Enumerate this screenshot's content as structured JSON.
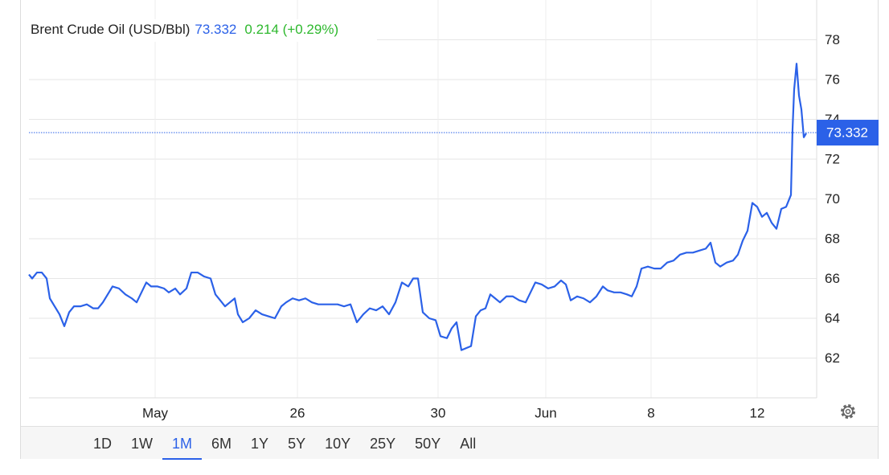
{
  "chart_data": {
    "type": "line",
    "title": "Brent Crude Oil (USD/Bbl)",
    "last_price": 73.332,
    "change": "0.214 (+0.29%)",
    "color": "#2b61e8",
    "price_color": "#2b61e8",
    "change_color": "#2db82d",
    "grid": true,
    "x": [
      0,
      4,
      10,
      16,
      22,
      26,
      32,
      38,
      44,
      50,
      56,
      64,
      72,
      80,
      86,
      92,
      98,
      104,
      112,
      120,
      128,
      134,
      140,
      146,
      152,
      160,
      168,
      174,
      182,
      188,
      196,
      202,
      210,
      218,
      226,
      232,
      238,
      244,
      250,
      256,
      260,
      266,
      274,
      282,
      290,
      298,
      306,
      314,
      320,
      328,
      336,
      344,
      352,
      360,
      368,
      376,
      384,
      392,
      400,
      408,
      416,
      424,
      432,
      440,
      448,
      456,
      464,
      472,
      478,
      484,
      490,
      498,
      506,
      512,
      520,
      526,
      532,
      538,
      544,
      550,
      556,
      562,
      568,
      574,
      580,
      586,
      594,
      602,
      610,
      618,
      624,
      630,
      638,
      646,
      654,
      662,
      668,
      674,
      682,
      690,
      698,
      706,
      714,
      720,
      728,
      736,
      744,
      750,
      756,
      762,
      770,
      778,
      786,
      794,
      802,
      810,
      818,
      826,
      834,
      842,
      848,
      854,
      860,
      868,
      876,
      882,
      888,
      894,
      900,
      906,
      912,
      918,
      924,
      930,
      936,
      942,
      948,
      950,
      952,
      955,
      958,
      961,
      964,
      967
    ],
    "values": [
      66.2,
      66.0,
      66.3,
      66.3,
      66.0,
      65.0,
      64.6,
      64.2,
      63.6,
      64.3,
      64.6,
      64.6,
      64.7,
      64.5,
      64.5,
      64.8,
      65.2,
      65.6,
      65.5,
      65.2,
      65.0,
      64.8,
      65.3,
      65.8,
      65.6,
      65.6,
      65.5,
      65.3,
      65.5,
      65.2,
      65.5,
      66.3,
      66.3,
      66.1,
      66.0,
      65.2,
      64.9,
      64.6,
      64.8,
      65.0,
      64.2,
      63.8,
      64.0,
      64.4,
      64.2,
      64.1,
      64.0,
      64.6,
      64.8,
      65.0,
      64.9,
      65.0,
      64.8,
      64.7,
      64.7,
      64.7,
      64.7,
      64.6,
      64.7,
      63.8,
      64.2,
      64.5,
      64.4,
      64.6,
      64.2,
      64.8,
      65.8,
      65.6,
      66.0,
      66.0,
      64.3,
      64.0,
      63.9,
      63.1,
      63.0,
      63.5,
      63.8,
      62.4,
      62.5,
      62.6,
      64.1,
      64.4,
      64.5,
      65.2,
      65.0,
      64.8,
      65.1,
      65.1,
      64.9,
      64.8,
      65.3,
      65.8,
      65.7,
      65.5,
      65.6,
      65.9,
      65.7,
      64.9,
      65.1,
      65.0,
      64.8,
      65.1,
      65.6,
      65.4,
      65.3,
      65.3,
      65.2,
      65.1,
      65.6,
      66.5,
      66.6,
      66.5,
      66.5,
      66.8,
      66.9,
      67.2,
      67.3,
      67.3,
      67.4,
      67.5,
      67.8,
      66.8,
      66.6,
      66.8,
      66.9,
      67.2,
      67.9,
      68.4,
      69.8,
      69.6,
      69.1,
      69.3,
      68.8,
      68.5,
      69.5,
      69.6,
      70.2,
      73.5,
      75.5,
      76.8,
      75.2,
      74.5,
      73.1,
      73.3
    ],
    "xlim": [
      0,
      980
    ],
    "xticks": [
      {
        "value": 157,
        "label": "May"
      },
      {
        "value": 334,
        "label": "26"
      },
      {
        "value": 509,
        "label": "30"
      },
      {
        "value": 643,
        "label": "Jun"
      },
      {
        "value": 774,
        "label": "8"
      },
      {
        "value": 906,
        "label": "12"
      }
    ],
    "ylim": [
      60,
      80
    ],
    "yticks": [
      62,
      64,
      66,
      68,
      70,
      72,
      74,
      76,
      78
    ]
  },
  "ranges": [
    "1D",
    "1W",
    "1M",
    "6M",
    "1Y",
    "5Y",
    "10Y",
    "25Y",
    "50Y",
    "All"
  ],
  "active_range": 2
}
